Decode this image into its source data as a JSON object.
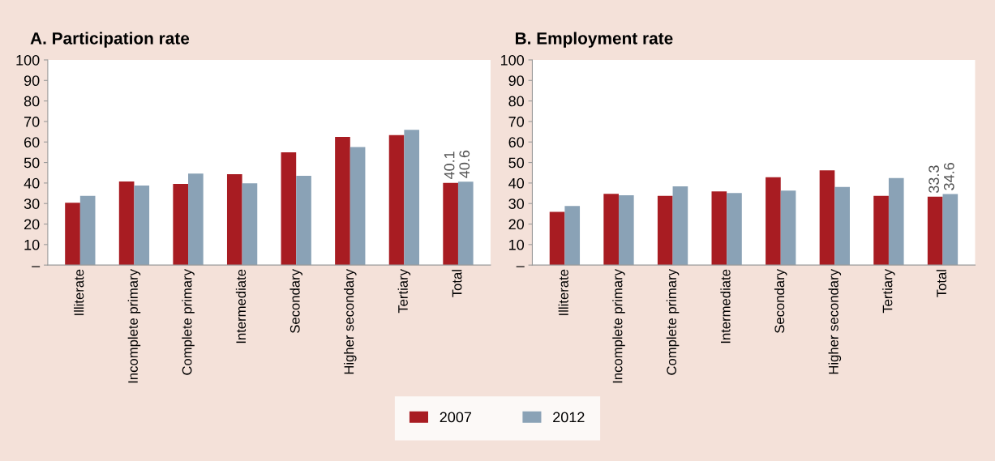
{
  "chart_data": [
    {
      "type": "bar",
      "title": "A. Participation rate",
      "categories": [
        "Illiterate",
        "Incomplete primary",
        "Complete primary",
        "Intermediate",
        "Secondary",
        "Higher secondary",
        "Tertiary",
        "Total"
      ],
      "series": [
        {
          "name": "2007",
          "color": "#a81c22",
          "values": [
            30.4,
            40.7,
            39.6,
            44.3,
            55.0,
            62.5,
            63.4,
            40.1
          ],
          "value_labels": [
            null,
            null,
            null,
            null,
            null,
            null,
            null,
            "40.1"
          ]
        },
        {
          "name": "2012",
          "color": "#8aa2b6",
          "values": [
            33.7,
            38.8,
            44.6,
            39.9,
            43.5,
            57.5,
            65.9,
            40.6
          ],
          "value_labels": [
            null,
            null,
            null,
            null,
            null,
            null,
            null,
            "40.6"
          ]
        }
      ],
      "ylim": [
        0,
        100
      ],
      "yticks": [
        {
          "value": 0,
          "label": "–"
        },
        10,
        20,
        30,
        40,
        50,
        60,
        70,
        80,
        90,
        100
      ],
      "grid": false,
      "legend": "bottom"
    },
    {
      "type": "bar",
      "title": "B. Employment rate",
      "categories": [
        "Illiterate",
        "Incomplete primary",
        "Complete primary",
        "Intermediate",
        "Secondary",
        "Higher secondary",
        "Tertiary",
        "Total"
      ],
      "series": [
        {
          "name": "2007",
          "color": "#a81c22",
          "values": [
            25.9,
            34.7,
            33.7,
            35.9,
            42.8,
            46.2,
            33.7,
            33.3
          ],
          "value_labels": [
            null,
            null,
            null,
            null,
            null,
            null,
            null,
            "33.3"
          ]
        },
        {
          "name": "2012",
          "color": "#8aa2b6",
          "values": [
            28.8,
            34.0,
            38.4,
            35.1,
            36.3,
            38.1,
            42.4,
            34.6
          ],
          "value_labels": [
            null,
            null,
            null,
            null,
            null,
            null,
            null,
            "34.6"
          ]
        }
      ],
      "ylim": [
        0,
        100
      ],
      "yticks": [
        {
          "value": 0,
          "label": "–"
        },
        10,
        20,
        30,
        40,
        50,
        60,
        70,
        80,
        90,
        100
      ],
      "grid": false
    }
  ]
}
